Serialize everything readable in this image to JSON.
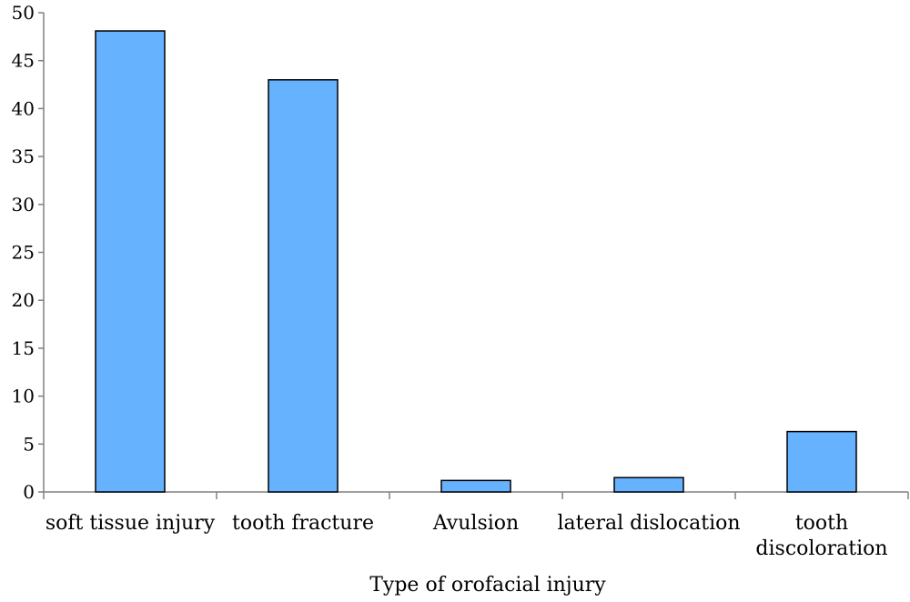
{
  "chart_data": {
    "type": "bar",
    "title": "",
    "xlabel": "Type of orofacial injury",
    "ylabel": "",
    "categories": [
      [
        "soft tissue injury"
      ],
      [
        "tooth fracture"
      ],
      [
        "Avulsion"
      ],
      [
        "lateral dislocation"
      ],
      [
        "tooth",
        "discoloration"
      ]
    ],
    "values": [
      48.1,
      43.0,
      1.2,
      1.5,
      6.3
    ],
    "ylim": [
      0,
      50
    ],
    "yticks": [
      "0",
      "5",
      "10",
      "15",
      "20",
      "25",
      "30",
      "35",
      "40",
      "45",
      "50"
    ],
    "grid": false,
    "legend": "none",
    "colors": {
      "bar_fill": "#66b2ff",
      "bar_stroke": "#000000",
      "axis": "#808080"
    }
  }
}
